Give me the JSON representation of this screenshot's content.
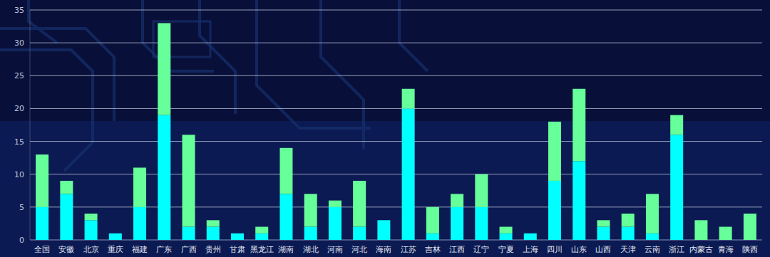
{
  "chart_data": {
    "type": "bar",
    "stacked": true,
    "grid": true,
    "categories": [
      "全国",
      "安徽",
      "北京",
      "重庆",
      "福建",
      "广东",
      "广西",
      "贵州",
      "甘肃",
      "黑龙江",
      "湖南",
      "湖北",
      "河南",
      "河北",
      "海南",
      "江苏",
      "吉林",
      "江西",
      "辽宁",
      "宁夏",
      "上海",
      "四川",
      "山东",
      "山西",
      "天津",
      "云南",
      "浙江",
      "内蒙古",
      "青海",
      "陕西"
    ],
    "series": [
      {
        "color": "#00ffff",
        "values": [
          5,
          7,
          3,
          1,
          5,
          19,
          2,
          2,
          1,
          1,
          7,
          2,
          5,
          2,
          3,
          20,
          1,
          5,
          5,
          1,
          1,
          9,
          12,
          2,
          2,
          1,
          16,
          0,
          0,
          0
        ]
      },
      {
        "color": "#66ff99",
        "values": [
          8,
          2,
          1,
          0,
          6,
          14,
          14,
          1,
          0,
          1,
          7,
          5,
          1,
          7,
          0,
          3,
          4,
          2,
          5,
          1,
          0,
          9,
          11,
          1,
          2,
          6,
          3,
          3,
          2,
          4
        ]
      }
    ],
    "ylim": [
      0,
      35
    ],
    "yticks": [
      0,
      5,
      10,
      15,
      20,
      25,
      30,
      35
    ]
  }
}
